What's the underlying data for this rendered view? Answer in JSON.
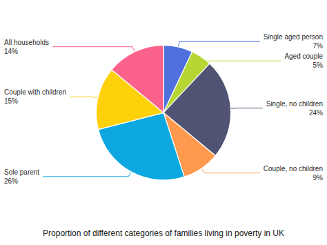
{
  "chart_data": {
    "type": "pie",
    "title": "Proportion of different categories of families living in poverty in UK",
    "categories": [
      "Single aged person",
      "Aged couple",
      "Single, no children",
      "Couple, no children",
      "Sole parent",
      "Couple with children",
      "All households"
    ],
    "values": [
      7,
      5,
      24,
      9,
      26,
      15,
      14
    ],
    "value_labels": [
      "7%",
      "5%",
      "24%",
      "9%",
      "26%",
      "15%",
      "14%"
    ],
    "data_labels": true
  }
}
